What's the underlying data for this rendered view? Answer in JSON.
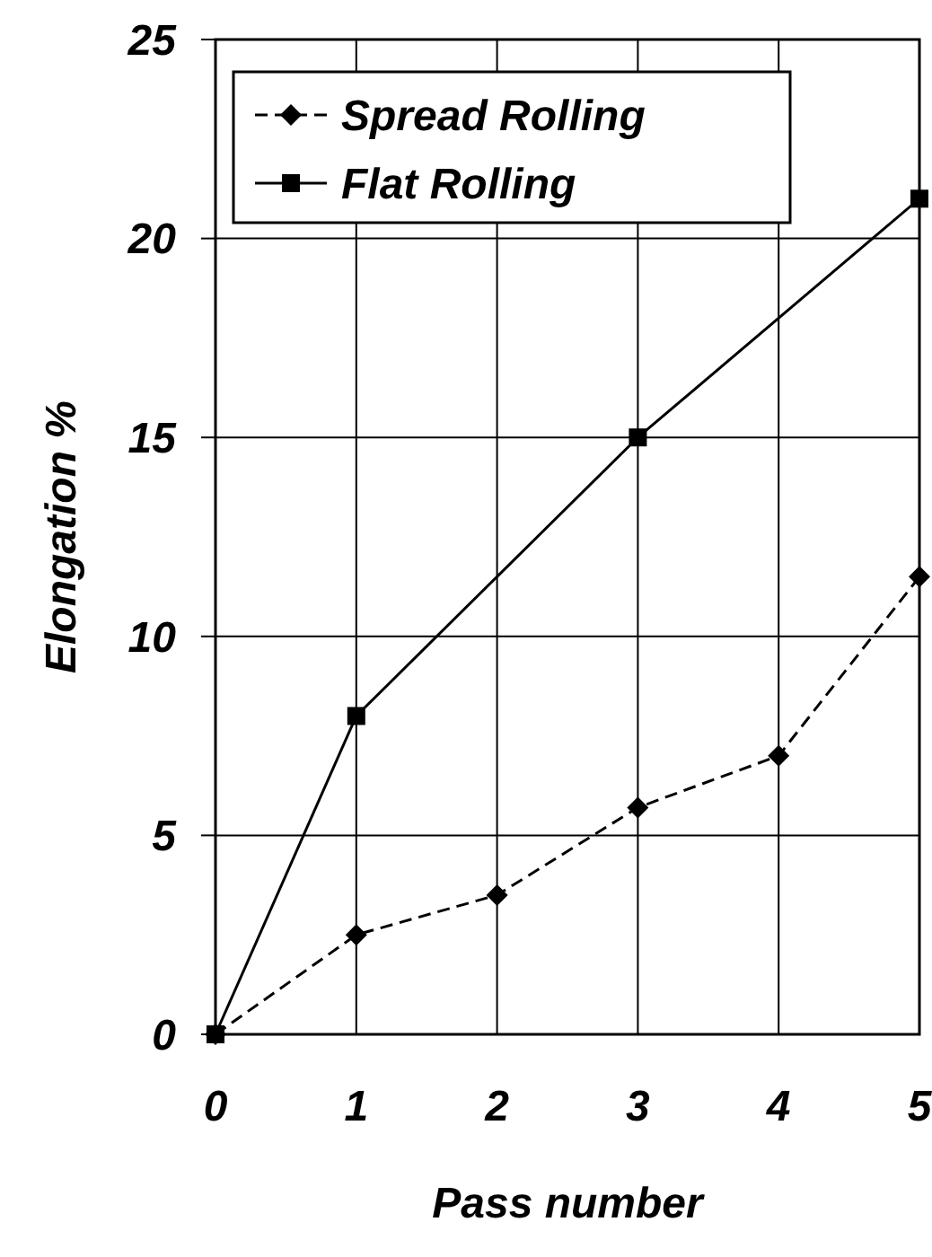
{
  "chart_data": {
    "type": "line",
    "xlabel": "Pass number",
    "ylabel": "Elongation %",
    "xlim": [
      0,
      5
    ],
    "xticks": [
      0,
      1,
      2,
      3,
      4,
      5
    ],
    "ylim": [
      0,
      25
    ],
    "yticks": [
      0,
      5,
      10,
      15,
      20,
      25
    ],
    "grid": true,
    "legend": "top left",
    "series": [
      {
        "name": "Spread Rolling",
        "color": "#000000",
        "marker": "diamond",
        "line_style": "dashed",
        "x": [
          0,
          1,
          2,
          3,
          4,
          5
        ],
        "values": [
          0,
          2.5,
          3.5,
          5.7,
          7,
          11.5
        ]
      },
      {
        "name": "Flat Rolling",
        "color": "#000000",
        "marker": "square",
        "line_style": "solid",
        "x": [
          0,
          1,
          3,
          5
        ],
        "values": [
          0,
          8,
          15,
          21
        ]
      }
    ]
  }
}
